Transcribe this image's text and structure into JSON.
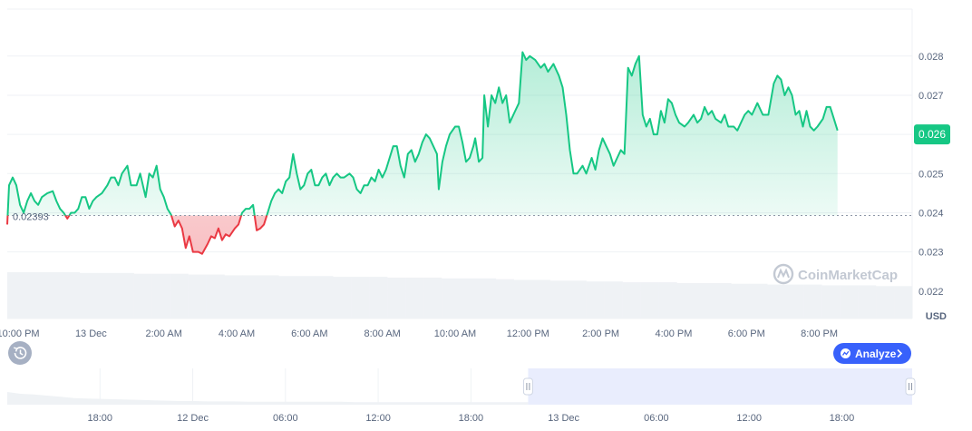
{
  "chart_data": {
    "type": "area",
    "currency_label": "USD",
    "watermark": "CoinMarketCap",
    "baseline_value": 0.02393,
    "baseline_label": "0.02393",
    "current_price": 0.026,
    "current_price_label": "0.026",
    "ylim": [
      0.0213,
      0.0292
    ],
    "y_ticks": [
      "0.022",
      "0.023",
      "0.024",
      "0.025",
      "0.026",
      "0.027",
      "0.028"
    ],
    "y_tick_values": [
      0.022,
      0.023,
      0.024,
      0.025,
      0.026,
      0.027,
      0.028
    ],
    "x_range_hours": [
      -2.3,
      22.55
    ],
    "x_ticks": [
      "10:00 PM",
      "13 Dec",
      "2:00 AM",
      "4:00 AM",
      "6:00 AM",
      "8:00 AM",
      "10:00 AM",
      "12:00 PM",
      "2:00 PM",
      "4:00 PM",
      "6:00 PM",
      "8:00 PM"
    ],
    "x_tick_hours": [
      -2,
      0,
      2,
      4,
      6,
      8,
      10,
      12,
      14,
      16,
      18,
      20
    ],
    "series": [
      {
        "points": [
          [
            -2.3,
            0.0237
          ],
          [
            -2.25,
            0.0247
          ],
          [
            -2.15,
            0.0249
          ],
          [
            -2.05,
            0.0247
          ],
          [
            -1.95,
            0.0242
          ],
          [
            -1.85,
            0.024
          ],
          [
            -1.75,
            0.0243
          ],
          [
            -1.65,
            0.0245
          ],
          [
            -1.55,
            0.0243
          ],
          [
            -1.45,
            0.0242
          ],
          [
            -1.35,
            0.0244
          ],
          [
            -1.2,
            0.0245
          ],
          [
            -1.05,
            0.02455
          ],
          [
            -0.95,
            0.0243
          ],
          [
            -0.85,
            0.0241
          ],
          [
            -0.75,
            0.024
          ],
          [
            -0.65,
            0.02385
          ],
          [
            -0.55,
            0.024
          ],
          [
            -0.45,
            0.024
          ],
          [
            -0.35,
            0.0241
          ],
          [
            -0.25,
            0.0244
          ],
          [
            -0.15,
            0.0244
          ],
          [
            -0.05,
            0.0241
          ],
          [
            0.05,
            0.0243
          ],
          [
            0.15,
            0.0244
          ],
          [
            0.3,
            0.0245
          ],
          [
            0.45,
            0.0247
          ],
          [
            0.55,
            0.0249
          ],
          [
            0.65,
            0.0249
          ],
          [
            0.75,
            0.0247
          ],
          [
            0.85,
            0.025
          ],
          [
            1.0,
            0.0252
          ],
          [
            1.1,
            0.0247
          ],
          [
            1.25,
            0.0247
          ],
          [
            1.35,
            0.025
          ],
          [
            1.5,
            0.0244
          ],
          [
            1.6,
            0.025
          ],
          [
            1.7,
            0.0249
          ],
          [
            1.8,
            0.0252
          ],
          [
            1.9,
            0.0246
          ],
          [
            2.0,
            0.0244
          ],
          [
            2.1,
            0.0241
          ],
          [
            2.2,
            0.02395
          ],
          [
            2.3,
            0.02365
          ],
          [
            2.4,
            0.0238
          ],
          [
            2.5,
            0.0236
          ],
          [
            2.6,
            0.0231
          ],
          [
            2.7,
            0.0234
          ],
          [
            2.8,
            0.023
          ],
          [
            2.95,
            0.023
          ],
          [
            3.05,
            0.02295
          ],
          [
            3.2,
            0.0232
          ],
          [
            3.3,
            0.0234
          ],
          [
            3.4,
            0.02335
          ],
          [
            3.5,
            0.0236
          ],
          [
            3.6,
            0.0233
          ],
          [
            3.7,
            0.02345
          ],
          [
            3.8,
            0.0234
          ],
          [
            3.95,
            0.0236
          ],
          [
            4.05,
            0.0237
          ],
          [
            4.15,
            0.024
          ],
          [
            4.25,
            0.0241
          ],
          [
            4.35,
            0.0241
          ],
          [
            4.45,
            0.0242
          ],
          [
            4.55,
            0.02355
          ],
          [
            4.65,
            0.0236
          ],
          [
            4.75,
            0.0237
          ],
          [
            4.85,
            0.024
          ],
          [
            4.95,
            0.0243
          ],
          [
            5.05,
            0.0245
          ],
          [
            5.15,
            0.0246
          ],
          [
            5.25,
            0.0245
          ],
          [
            5.35,
            0.0248
          ],
          [
            5.45,
            0.0249
          ],
          [
            5.55,
            0.0255
          ],
          [
            5.65,
            0.025
          ],
          [
            5.75,
            0.0246
          ],
          [
            5.85,
            0.0247
          ],
          [
            5.95,
            0.025
          ],
          [
            6.05,
            0.0251
          ],
          [
            6.15,
            0.0247
          ],
          [
            6.25,
            0.0247
          ],
          [
            6.35,
            0.0249
          ],
          [
            6.45,
            0.025
          ],
          [
            6.55,
            0.0247
          ],
          [
            6.65,
            0.0249
          ],
          [
            6.75,
            0.025
          ],
          [
            6.85,
            0.0249
          ],
          [
            6.95,
            0.0249
          ],
          [
            7.1,
            0.025
          ],
          [
            7.2,
            0.0249
          ],
          [
            7.3,
            0.0246
          ],
          [
            7.4,
            0.0245
          ],
          [
            7.5,
            0.0247
          ],
          [
            7.6,
            0.0247
          ],
          [
            7.7,
            0.0249
          ],
          [
            7.8,
            0.0248
          ],
          [
            7.9,
            0.0251
          ],
          [
            8.0,
            0.0249
          ],
          [
            8.1,
            0.0251
          ],
          [
            8.2,
            0.0254
          ],
          [
            8.3,
            0.0257
          ],
          [
            8.4,
            0.0257
          ],
          [
            8.5,
            0.0252
          ],
          [
            8.6,
            0.0249
          ],
          [
            8.7,
            0.0255
          ],
          [
            8.8,
            0.0256
          ],
          [
            8.9,
            0.0253
          ],
          [
            9.0,
            0.0255
          ],
          [
            9.1,
            0.0258
          ],
          [
            9.2,
            0.026
          ],
          [
            9.3,
            0.0259
          ],
          [
            9.4,
            0.0257
          ],
          [
            9.5,
            0.0255
          ],
          [
            9.55,
            0.0246
          ],
          [
            9.65,
            0.0253
          ],
          [
            9.75,
            0.0257
          ],
          [
            9.85,
            0.026
          ],
          [
            10.0,
            0.0262
          ],
          [
            10.1,
            0.0262
          ],
          [
            10.2,
            0.0258
          ],
          [
            10.3,
            0.0253
          ],
          [
            10.4,
            0.0254
          ],
          [
            10.5,
            0.0257
          ],
          [
            10.55,
            0.0259
          ],
          [
            10.65,
            0.0253
          ],
          [
            10.75,
            0.0254
          ],
          [
            10.8,
            0.027
          ],
          [
            10.9,
            0.0262
          ],
          [
            11.0,
            0.027
          ],
          [
            11.1,
            0.0268
          ],
          [
            11.2,
            0.0272
          ],
          [
            11.3,
            0.0268
          ],
          [
            11.4,
            0.027
          ],
          [
            11.5,
            0.0263
          ],
          [
            11.6,
            0.0265
          ],
          [
            11.75,
            0.0268
          ],
          [
            11.85,
            0.0281
          ],
          [
            11.95,
            0.0279
          ],
          [
            12.05,
            0.028
          ],
          [
            12.2,
            0.0279
          ],
          [
            12.35,
            0.0277
          ],
          [
            12.45,
            0.0278
          ],
          [
            12.55,
            0.0276
          ],
          [
            12.7,
            0.0278
          ],
          [
            12.85,
            0.0275
          ],
          [
            12.95,
            0.0272
          ],
          [
            13.05,
            0.0265
          ],
          [
            13.15,
            0.0256
          ],
          [
            13.25,
            0.025
          ],
          [
            13.35,
            0.025
          ],
          [
            13.5,
            0.0252
          ],
          [
            13.6,
            0.025
          ],
          [
            13.75,
            0.0254
          ],
          [
            13.85,
            0.0251
          ],
          [
            13.95,
            0.0256
          ],
          [
            14.05,
            0.0259
          ],
          [
            14.15,
            0.0257
          ],
          [
            14.25,
            0.0255
          ],
          [
            14.35,
            0.0252
          ],
          [
            14.45,
            0.0254
          ],
          [
            14.55,
            0.0256
          ],
          [
            14.65,
            0.0255
          ],
          [
            14.75,
            0.0277
          ],
          [
            14.85,
            0.0275
          ],
          [
            14.95,
            0.0278
          ],
          [
            15.05,
            0.028
          ],
          [
            15.15,
            0.0265
          ],
          [
            15.25,
            0.0262
          ],
          [
            15.35,
            0.0264
          ],
          [
            15.45,
            0.026
          ],
          [
            15.55,
            0.026
          ],
          [
            15.65,
            0.0266
          ],
          [
            15.75,
            0.0263
          ],
          [
            15.85,
            0.0269
          ],
          [
            15.95,
            0.0268
          ],
          [
            16.05,
            0.0265
          ],
          [
            16.15,
            0.0263
          ],
          [
            16.3,
            0.0262
          ],
          [
            16.4,
            0.0263
          ],
          [
            16.55,
            0.0265
          ],
          [
            16.65,
            0.0263
          ],
          [
            16.75,
            0.0264
          ],
          [
            16.85,
            0.0267
          ],
          [
            16.95,
            0.0265
          ],
          [
            17.05,
            0.0266
          ],
          [
            17.15,
            0.0264
          ],
          [
            17.3,
            0.0263
          ],
          [
            17.4,
            0.0265
          ],
          [
            17.5,
            0.0262
          ],
          [
            17.65,
            0.0262
          ],
          [
            17.75,
            0.0261
          ],
          [
            17.85,
            0.0263
          ],
          [
            17.95,
            0.0265
          ],
          [
            18.05,
            0.0266
          ],
          [
            18.15,
            0.0265
          ],
          [
            18.3,
            0.0268
          ],
          [
            18.45,
            0.0265
          ],
          [
            18.6,
            0.0265
          ],
          [
            18.75,
            0.0273
          ],
          [
            18.85,
            0.0275
          ],
          [
            18.95,
            0.0274
          ],
          [
            19.05,
            0.027
          ],
          [
            19.15,
            0.0272
          ],
          [
            19.25,
            0.027
          ],
          [
            19.35,
            0.0265
          ],
          [
            19.45,
            0.0266
          ],
          [
            19.55,
            0.0262
          ],
          [
            19.65,
            0.0266
          ],
          [
            19.75,
            0.0262
          ],
          [
            19.85,
            0.0261
          ],
          [
            19.95,
            0.0262
          ],
          [
            20.1,
            0.0264
          ],
          [
            20.2,
            0.0267
          ],
          [
            20.3,
            0.0267
          ],
          [
            20.4,
            0.0264
          ],
          [
            20.5,
            0.0261
          ]
        ]
      }
    ],
    "volume": {
      "values": [
        0.6,
        0.6,
        0.6,
        0.6,
        0.59,
        0.59,
        0.59,
        0.58,
        0.58,
        0.58,
        0.57,
        0.57,
        0.56,
        0.56,
        0.56,
        0.55,
        0.55,
        0.55,
        0.54,
        0.54,
        0.54,
        0.53,
        0.53,
        0.53,
        0.52,
        0.52,
        0.52,
        0.51,
        0.5,
        0.5,
        0.49,
        0.49,
        0.48,
        0.48,
        0.47,
        0.47,
        0.47,
        0.46,
        0.46,
        0.46,
        0.45,
        0.45,
        0.44,
        0.44,
        0.44,
        0.43,
        0.43,
        0.43,
        0.42,
        0.42
      ]
    },
    "navigator": {
      "x_ticks": [
        "18:00",
        "12 Dec",
        "06:00",
        "12:00",
        "18:00",
        "13 Dec",
        "06:00",
        "12:00",
        "18:00"
      ],
      "x_tick_hours": [
        -30,
        -24,
        -18,
        -12,
        -6,
        0,
        6,
        12,
        18
      ],
      "x_range_hours": [
        -36,
        22.55
      ],
      "selection_hours": [
        -2.3,
        22.55
      ],
      "history_values": [
        0.35,
        0.3,
        0.28,
        0.25,
        0.22,
        0.18,
        0.17,
        0.16,
        0.15,
        0.14,
        0.13,
        0.12,
        0.11,
        0.1,
        0.1,
        0.09,
        0.09,
        0.09,
        0.08,
        0.08,
        0.08,
        0.08,
        0.08,
        0.08,
        0.08,
        0.08,
        0.07,
        0.07,
        0.07,
        0.07,
        0.07,
        0.07,
        0.07,
        0.07,
        0.07,
        0.07,
        0.07,
        0.07,
        0.07,
        0.07
      ]
    }
  },
  "controls": {
    "analyze_label": "Analyze",
    "analyze_icon": "chart-analyze-icon",
    "history_icon": "history-icon"
  },
  "colors": {
    "up": "#16c784",
    "down": "#ea3943",
    "analyze_bg": "#3861fb",
    "grid": "#eff2f5",
    "navigator_selection": "#e9edfd",
    "volume": "#eff2f5"
  }
}
